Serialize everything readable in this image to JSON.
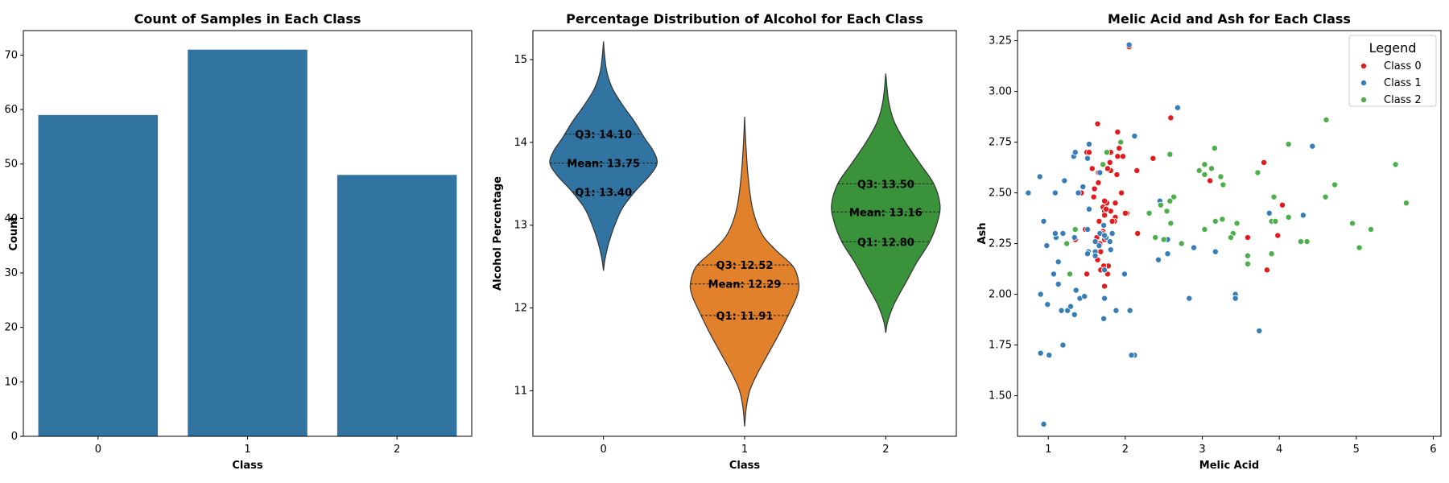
{
  "chart_data": [
    {
      "type": "bar",
      "title": "Count of Samples in Each Class",
      "xlabel": "Class",
      "ylabel": "Count",
      "categories": [
        "0",
        "1",
        "2"
      ],
      "values": [
        59,
        71,
        48
      ],
      "ylim": [
        0,
        74.5
      ],
      "yticks": [
        0,
        10,
        20,
        30,
        40,
        50,
        60,
        70
      ],
      "color": "#3274a1"
    },
    {
      "type": "violin",
      "title": "Percentage Distribution of Alcohol for Each Class",
      "xlabel": "Class",
      "ylabel": "Alcohol Percentage",
      "categories": [
        "0",
        "1",
        "2"
      ],
      "ylim": [
        10.45,
        15.35
      ],
      "yticks": [
        11,
        12,
        13,
        14,
        15
      ],
      "series": [
        {
          "category": "0",
          "color": "#3274a1",
          "min": 12.45,
          "max": 15.22,
          "q1": 13.4,
          "mean": 13.75,
          "q3": 14.1,
          "q1_label": "Q1: 13.40",
          "mean_label": "Mean: 13.75",
          "q3_label": "Q3: 14.10",
          "profile": [
            [
              12.45,
              0.0
            ],
            [
              12.6,
              0.03
            ],
            [
              12.8,
              0.1
            ],
            [
              13.0,
              0.2
            ],
            [
              13.2,
              0.33
            ],
            [
              13.4,
              0.55
            ],
            [
              13.6,
              0.82
            ],
            [
              13.75,
              0.95
            ],
            [
              13.9,
              0.88
            ],
            [
              14.05,
              0.73
            ],
            [
              14.25,
              0.55
            ],
            [
              14.45,
              0.34
            ],
            [
              14.65,
              0.16
            ],
            [
              14.85,
              0.06
            ],
            [
              15.05,
              0.02
            ],
            [
              15.22,
              0.0
            ]
          ]
        },
        {
          "category": "1",
          "color": "#e1812c",
          "min": 10.57,
          "max": 14.31,
          "q1": 11.91,
          "mean": 12.29,
          "q3": 12.52,
          "q1_label": "Q1: 11.91",
          "mean_label": "Mean: 12.29",
          "q3_label": "Q3: 12.52",
          "profile": [
            [
              10.57,
              0.0
            ],
            [
              10.8,
              0.03
            ],
            [
              11.0,
              0.09
            ],
            [
              11.2,
              0.22
            ],
            [
              11.45,
              0.42
            ],
            [
              11.7,
              0.62
            ],
            [
              11.95,
              0.8
            ],
            [
              12.15,
              0.93
            ],
            [
              12.3,
              0.96
            ],
            [
              12.5,
              0.86
            ],
            [
              12.7,
              0.55
            ],
            [
              12.9,
              0.3
            ],
            [
              13.2,
              0.14
            ],
            [
              13.6,
              0.06
            ],
            [
              14.0,
              0.02
            ],
            [
              14.31,
              0.0
            ]
          ]
        },
        {
          "category": "2",
          "color": "#3a923a",
          "min": 11.7,
          "max": 14.83,
          "q1": 12.8,
          "mean": 13.16,
          "q3": 13.5,
          "q1_label": "Q1: 12.80",
          "mean_label": "Mean: 13.16",
          "q3_label": "Q3: 13.50",
          "profile": [
            [
              11.7,
              0.0
            ],
            [
              11.85,
              0.04
            ],
            [
              12.05,
              0.15
            ],
            [
              12.3,
              0.35
            ],
            [
              12.55,
              0.55
            ],
            [
              12.8,
              0.78
            ],
            [
              13.05,
              0.92
            ],
            [
              13.25,
              0.96
            ],
            [
              13.5,
              0.85
            ],
            [
              13.75,
              0.6
            ],
            [
              14.0,
              0.35
            ],
            [
              14.25,
              0.15
            ],
            [
              14.5,
              0.05
            ],
            [
              14.83,
              0.0
            ]
          ]
        }
      ]
    },
    {
      "type": "scatter",
      "title": "Melic Acid and Ash for Each Class",
      "xlabel": "Melic Acid",
      "ylabel": "Ash",
      "xlim": [
        0.6,
        6.1
      ],
      "ylim": [
        1.3,
        3.3
      ],
      "xticks": [
        1,
        2,
        3,
        4,
        5,
        6
      ],
      "yticks": [
        1.5,
        1.75,
        2.0,
        2.25,
        2.5,
        2.75,
        3.0,
        3.25
      ],
      "yticklabels": [
        "1.50",
        "1.75",
        "2.00",
        "2.25",
        "2.50",
        "2.75",
        "3.00",
        "3.25"
      ],
      "legend_title": "Legend",
      "legend_position": "top-right",
      "series": [
        {
          "name": "Class 0",
          "color": "#e41a1c",
          "points": [
            [
              1.71,
              2.43
            ],
            [
              1.78,
              2.14
            ],
            [
              2.36,
              2.67
            ],
            [
              1.95,
              2.5
            ],
            [
              2.59,
              2.87
            ],
            [
              1.76,
              2.45
            ],
            [
              1.87,
              2.45
            ],
            [
              2.15,
              2.61
            ],
            [
              1.64,
              2.17
            ],
            [
              1.35,
              2.27
            ],
            [
              2.16,
              2.3
            ],
            [
              1.48,
              2.32
            ],
            [
              1.73,
              2.41
            ],
            [
              1.73,
              2.39
            ],
            [
              1.87,
              2.38
            ],
            [
              1.81,
              2.7
            ],
            [
              1.92,
              2.72
            ],
            [
              1.57,
              2.62
            ],
            [
              1.59,
              2.48
            ],
            [
              3.1,
              2.56
            ],
            [
              1.63,
              2.28
            ],
            [
              3.8,
              2.65
            ],
            [
              1.86,
              2.36
            ],
            [
              1.6,
              2.52
            ],
            [
              1.81,
              2.61
            ],
            [
              2.05,
              3.22
            ],
            [
              1.77,
              2.62
            ],
            [
              1.72,
              2.14
            ],
            [
              1.9,
              2.8
            ],
            [
              1.68,
              2.21
            ],
            [
              1.5,
              2.7
            ],
            [
              1.66,
              2.36
            ],
            [
              1.83,
              2.36
            ],
            [
              1.53,
              2.7
            ],
            [
              1.8,
              2.65
            ],
            [
              1.81,
              2.41
            ],
            [
              1.64,
              2.84
            ],
            [
              1.65,
              2.55
            ],
            [
              1.5,
              2.1
            ],
            [
              3.59,
              2.28
            ],
            [
              1.71,
              2.31
            ],
            [
              3.84,
              2.12
            ],
            [
              1.89,
              2.59
            ],
            [
              3.98,
              2.29
            ],
            [
              1.77,
              2.1
            ],
            [
              4.04,
              2.44
            ],
            [
              3.59,
              2.28
            ],
            [
              1.68,
              2.12
            ],
            [
              2.02,
              2.4
            ],
            [
              1.73,
              2.27
            ],
            [
              1.73,
              2.04
            ],
            [
              1.65,
              2.6
            ],
            [
              1.75,
              2.42
            ],
            [
              1.9,
              2.68
            ],
            [
              1.67,
              2.25
            ],
            [
              1.73,
              2.46
            ],
            [
              1.7,
              2.3
            ],
            [
              1.97,
              2.68
            ],
            [
              1.43,
              2.5
            ],
            [
              2.0,
              2.4
            ]
          ]
        },
        {
          "name": "Class 1",
          "color": "#377eb8",
          "points": [
            [
              0.94,
              1.36
            ],
            [
              1.1,
              2.28
            ],
            [
              1.36,
              2.02
            ],
            [
              1.25,
              1.92
            ],
            [
              1.13,
              2.16
            ],
            [
              1.45,
              2.53
            ],
            [
              1.21,
              2.56
            ],
            [
              1.01,
              1.7
            ],
            [
              1.17,
              1.92
            ],
            [
              0.94,
              2.36
            ],
            [
              1.19,
              1.75
            ],
            [
              1.61,
              2.21
            ],
            [
              1.51,
              2.67
            ],
            [
              1.66,
              2.24
            ],
            [
              1.67,
              2.6
            ],
            [
              1.09,
              2.3
            ],
            [
              1.88,
              1.92
            ],
            [
              0.9,
              1.71
            ],
            [
              2.89,
              2.23
            ],
            [
              0.99,
              1.95
            ],
            [
              3.87,
              2.4
            ],
            [
              1.13,
              2.05
            ],
            [
              0.98,
              2.24
            ],
            [
              1.61,
              2.26
            ],
            [
              1.67,
              2.3
            ],
            [
              2.06,
              1.92
            ],
            [
              1.33,
              2.68
            ],
            [
              1.83,
              2.3
            ],
            [
              1.51,
              2.32
            ],
            [
              1.53,
              2.42
            ],
            [
              1.8,
              2.26
            ],
            [
              1.81,
              2.22
            ],
            [
              1.34,
              2.28
            ],
            [
              2.55,
              2.2
            ],
            [
              1.53,
              2.74
            ],
            [
              2.83,
              1.98
            ],
            [
              1.99,
              2.1
            ],
            [
              1.52,
              2.21
            ],
            [
              2.12,
              1.7
            ],
            [
              1.41,
              1.98
            ],
            [
              1.07,
              2.1
            ],
            [
              3.17,
              2.21
            ],
            [
              2.08,
              1.7
            ],
            [
              1.34,
              1.9
            ],
            [
              2.45,
              2.46
            ],
            [
              1.72,
              1.88
            ],
            [
              1.73,
              1.98
            ],
            [
              2.55,
              2.27
            ],
            [
              1.73,
              2.12
            ],
            [
              1.75,
              2.28
            ],
            [
              1.29,
              1.94
            ],
            [
              1.35,
              2.7
            ],
            [
              3.74,
              1.82
            ],
            [
              2.43,
              2.17
            ],
            [
              2.68,
              2.92
            ],
            [
              0.74,
              2.5
            ],
            [
              1.39,
              2.5
            ],
            [
              1.51,
              2.2
            ],
            [
              1.47,
              1.99
            ],
            [
              1.61,
              2.19
            ],
            [
              1.72,
              2.34
            ],
            [
              4.43,
              2.73
            ],
            [
              0.89,
              2.58
            ],
            [
              3.43,
              2.0
            ],
            [
              1.09,
              2.5
            ],
            [
              1.73,
              2.29
            ],
            [
              2.12,
              2.78
            ],
            [
              4.31,
              2.39
            ],
            [
              2.05,
              3.23
            ],
            [
              3.43,
              1.98
            ],
            [
              0.9,
              2.0
            ],
            [
              1.19,
              2.3
            ]
          ]
        },
        {
          "name": "Class 2",
          "color": "#4daf4a",
          "points": [
            [
              1.24,
              2.25
            ],
            [
              3.9,
              2.36
            ],
            [
              2.5,
              2.27
            ],
            [
              3.59,
              2.15
            ],
            [
              5.65,
              2.45
            ],
            [
              3.27,
              2.54
            ],
            [
              5.51,
              2.64
            ],
            [
              3.45,
              2.35
            ],
            [
              4.6,
              2.48
            ],
            [
              1.28,
              2.1
            ],
            [
              4.12,
              2.38
            ],
            [
              3.03,
              2.64
            ],
            [
              1.35,
              2.32
            ],
            [
              3.59,
              2.19
            ],
            [
              2.54,
              2.41
            ],
            [
              2.31,
              2.4
            ],
            [
              2.63,
              2.48
            ],
            [
              4.28,
              2.26
            ],
            [
              4.36,
              2.26
            ],
            [
              1.76,
              2.7
            ],
            [
              2.59,
              2.35
            ],
            [
              4.72,
              2.54
            ],
            [
              4.61,
              2.86
            ],
            [
              3.24,
              2.58
            ],
            [
              4.12,
              2.74
            ],
            [
              3.03,
              2.32
            ],
            [
              3.4,
              2.3
            ],
            [
              4.95,
              2.35
            ],
            [
              2.58,
              2.69
            ],
            [
              3.26,
              2.37
            ],
            [
              3.37,
              2.28
            ],
            [
              2.58,
              2.46
            ],
            [
              3.9,
              2.2
            ],
            [
              3.93,
              2.48
            ],
            [
              3.95,
              2.36
            ],
            [
              3.72,
              2.6
            ],
            [
              2.96,
              2.61
            ],
            [
              2.46,
              2.44
            ],
            [
              2.39,
              2.28
            ],
            [
              3.12,
              2.62
            ],
            [
              3.16,
              2.72
            ],
            [
              2.73,
              2.25
            ],
            [
              3.03,
              2.59
            ],
            [
              5.04,
              2.23
            ],
            [
              5.19,
              2.32
            ],
            [
              1.94,
              2.75
            ],
            [
              3.17,
              2.36
            ],
            [
              1.71,
              2.64
            ]
          ]
        }
      ]
    }
  ]
}
